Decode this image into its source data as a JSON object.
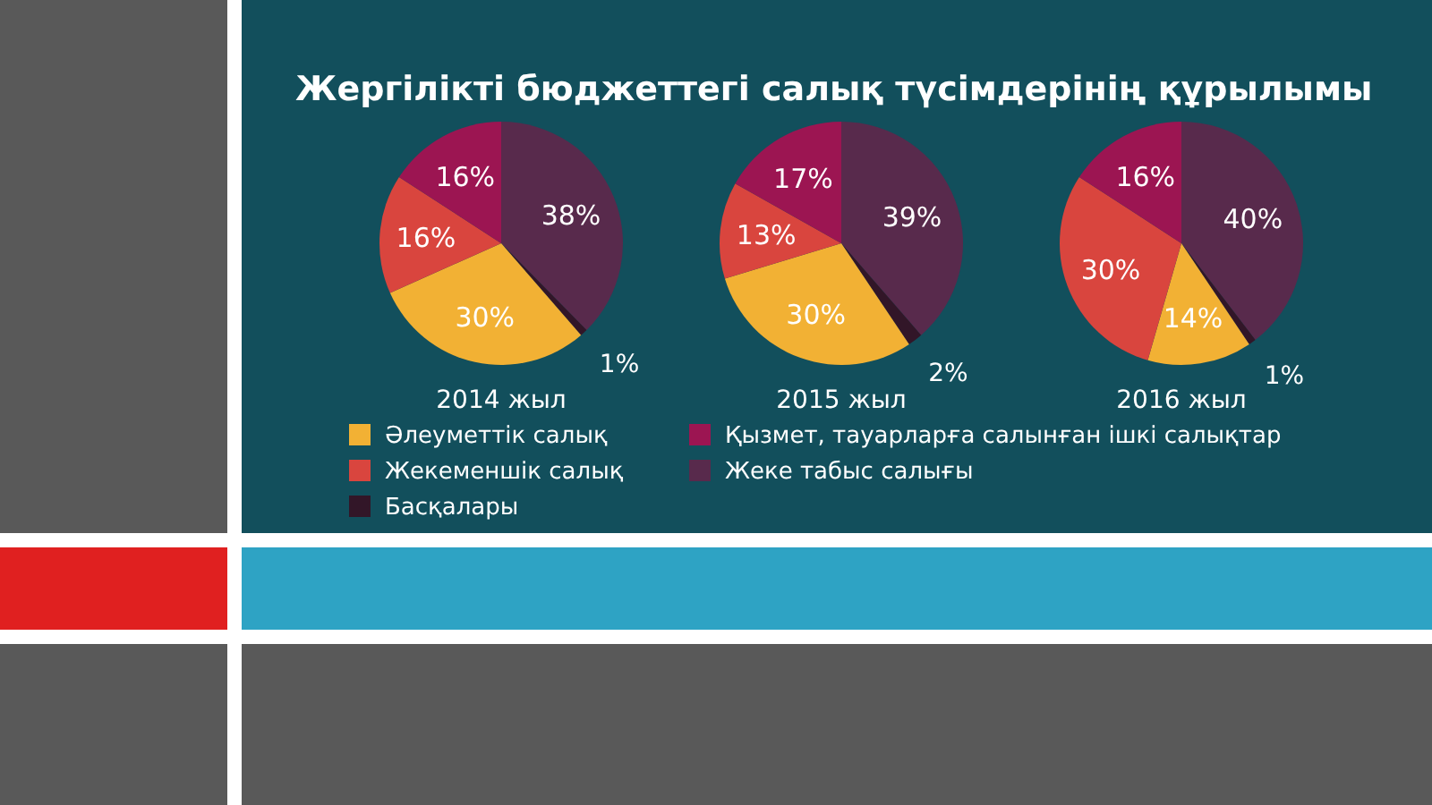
{
  "chart_data": [
    {
      "type": "pie",
      "title": "Жергілікті бюджеттегі салық түсімдерінің құрылымы",
      "xlabel": "2014 жыл",
      "legend": "bottom",
      "categories": [
        "Жеке табыс салығы",
        "Басқалары",
        "Әлеуметтік салық",
        "Жекеменшік салық",
        "Қызмет, тауарларға салынған ішкі салықтар"
      ],
      "values": [
        38,
        1,
        30,
        16,
        16
      ],
      "value_labels": [
        "38%",
        "1%",
        "30%",
        "16%",
        "16%"
      ],
      "colors": [
        "#582a4c",
        "#321628",
        "#f2b134",
        "#d9453e",
        "#9c1552"
      ]
    },
    {
      "type": "pie",
      "xlabel": "2015 жыл",
      "values": [
        39,
        2,
        30,
        13,
        17
      ],
      "value_labels": [
        "39%",
        "2%",
        "30%",
        "13%",
        "17%"
      ],
      "colors": [
        "#582a4c",
        "#321628",
        "#f2b134",
        "#d9453e",
        "#9c1552"
      ]
    },
    {
      "type": "pie",
      "xlabel": "2016 жыл",
      "values": [
        40,
        1,
        14,
        30,
        16
      ],
      "value_labels": [
        "40%",
        "1%",
        "14%",
        "30%",
        "16%"
      ],
      "colors": [
        "#582a4c",
        "#321628",
        "#f2b134",
        "#d9453e",
        "#9c1552"
      ]
    }
  ]
}
